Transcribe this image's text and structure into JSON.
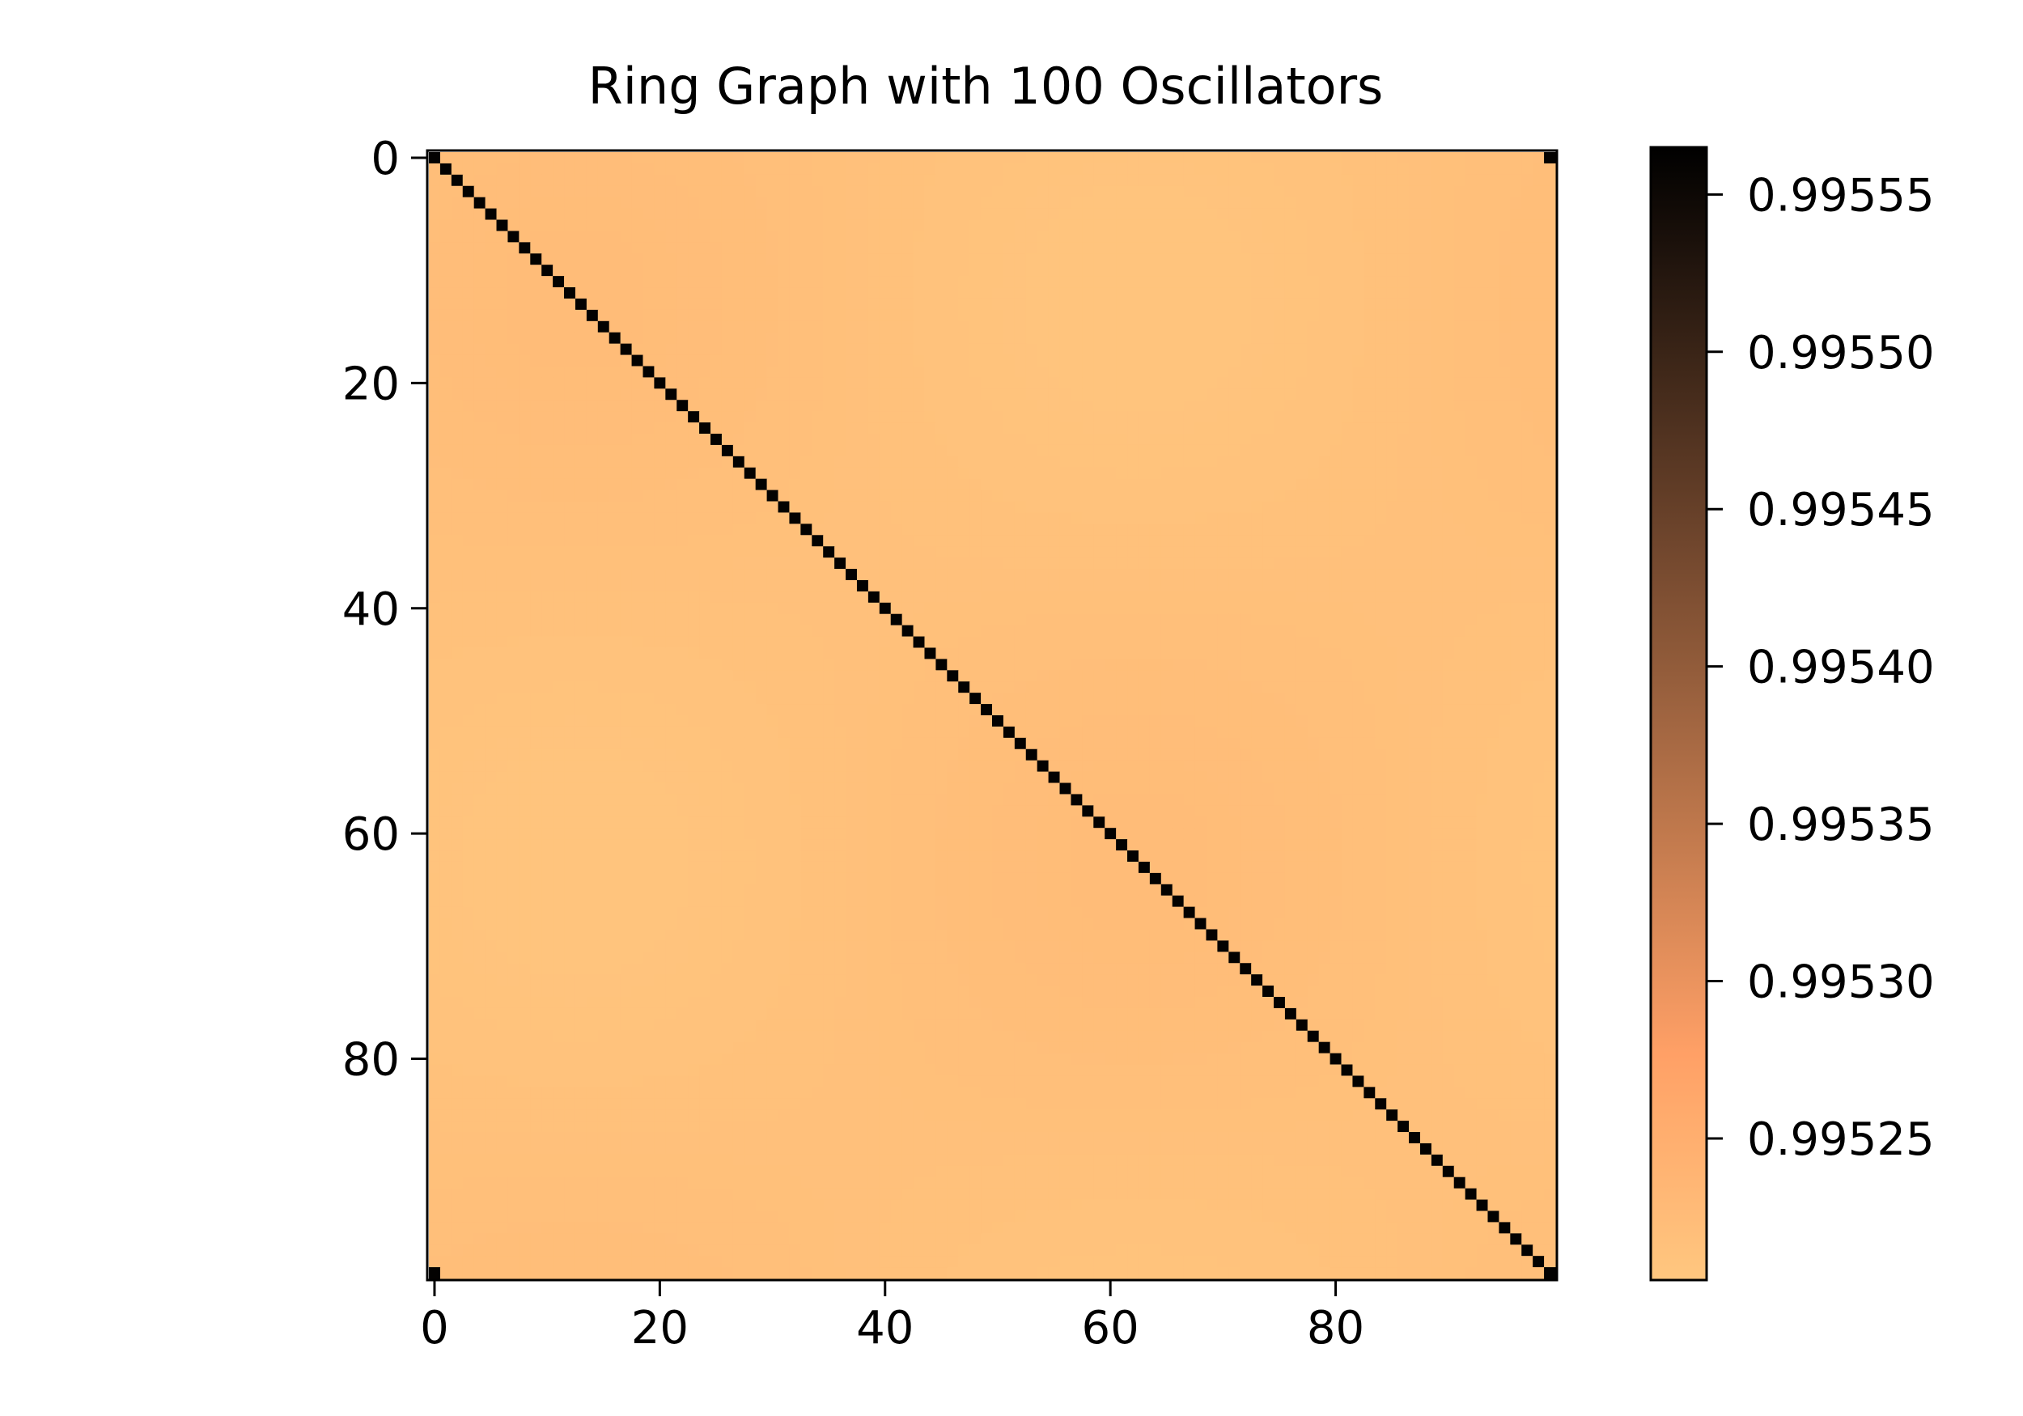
{
  "chart_data": {
    "type": "heatmap",
    "title": "Ring Graph with 100 Oscillators",
    "xlabel": "",
    "ylabel": "",
    "n": 100,
    "xticks": [
      0,
      20,
      40,
      60,
      80
    ],
    "yticks": [
      0,
      20,
      40,
      60,
      80
    ],
    "value_range": [
      0.995205,
      0.995565
    ],
    "background_value_range": [
      0.99521,
      0.995225
    ],
    "diagonal_value": 0.995562,
    "corner_cells": [
      [
        0,
        99
      ],
      [
        99,
        0
      ]
    ],
    "corner_value": 0.995562,
    "colormap": "copper_r",
    "colorbar": {
      "ticks": [
        0.99525,
        0.9953,
        0.99535,
        0.9954,
        0.99545,
        0.9955,
        0.99555
      ],
      "tick_labels": [
        "0.99525",
        "0.99530",
        "0.99535",
        "0.99540",
        "0.99545",
        "0.99550",
        "0.99555"
      ],
      "colors": {
        "low": "#ffc77f",
        "mid": "#ffa066",
        "high": "#000000"
      }
    },
    "grid": false
  }
}
